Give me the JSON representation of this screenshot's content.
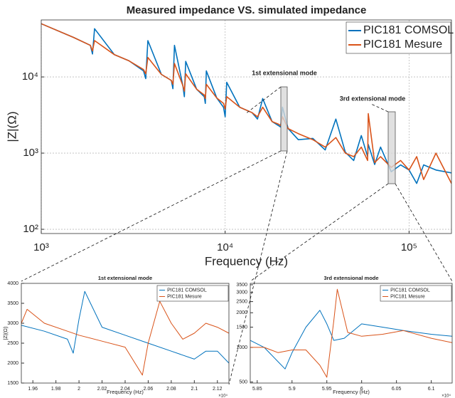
{
  "chart_data": [
    {
      "type": "line",
      "title": "Measured impedance VS. simulated impedance",
      "xlabel": "Frequency (Hz)",
      "ylabel": "|Z|(Ω)",
      "log_x": true,
      "log_y": true,
      "grid": true,
      "legend": "upper right",
      "xlim": [
        1000,
        170000
      ],
      "ylim": [
        88,
        56000
      ],
      "xticks": [
        {
          "value": 1000,
          "label": "10³"
        },
        {
          "value": 10000,
          "label": "10⁴"
        },
        {
          "value": 100000,
          "label": "10⁵"
        }
      ],
      "yticks": [
        {
          "value": 100,
          "label": "10²"
        },
        {
          "value": 1000,
          "label": "10³"
        },
        {
          "value": 10000,
          "label": "10⁴"
        }
      ],
      "annotations": [
        "1st extensional mode",
        "3rd extensional mode"
      ],
      "x": [
        1000,
        1500,
        1850,
        1900,
        1950,
        2500,
        3000,
        3600,
        3700,
        3800,
        4500,
        5100,
        5200,
        5300,
        5900,
        6000,
        6100,
        7000,
        7700,
        7800,
        7900,
        9000,
        9800,
        10000,
        10200,
        12000,
        14000,
        15000,
        16000,
        18000,
        19500,
        20000,
        20500,
        22000,
        25000,
        30000,
        35000,
        40000,
        45000,
        50000,
        55000,
        59500,
        60000,
        65000,
        70000,
        80000,
        90000,
        100000,
        110000,
        120000,
        140000,
        170000
      ],
      "series": [
        {
          "name": "PIC181 COMSOL",
          "color": "#0072BD",
          "values": [
            50000,
            33000,
            26000,
            20000,
            43000,
            19600,
            16300,
            12000,
            9500,
            30000,
            10800,
            9000,
            7000,
            26000,
            7500,
            5500,
            16000,
            6900,
            5500,
            4500,
            12000,
            5300,
            4000,
            3000,
            8500,
            4000,
            3400,
            2800,
            5200,
            2600,
            2300,
            2200,
            4000,
            2100,
            1500,
            1560,
            1100,
            2800,
            1030,
            800,
            1700,
            900,
            1300,
            710,
            1200,
            570,
            700,
            600,
            400,
            700,
            600,
            550
          ]
        },
        {
          "name": "PIC181 Mesure",
          "color": "#D95319",
          "values": [
            50000,
            33000,
            26000,
            22000,
            30000,
            19600,
            16300,
            12500,
            11000,
            18000,
            10800,
            9000,
            8000,
            15000,
            7600,
            6500,
            11000,
            6900,
            5800,
            5200,
            8000,
            5300,
            4500,
            3800,
            5500,
            4000,
            3400,
            3000,
            4000,
            2600,
            2400,
            2300,
            3000,
            2100,
            1800,
            1500,
            1200,
            1600,
            1000,
            900,
            1200,
            800,
            3300,
            750,
            900,
            650,
            800,
            600,
            900,
            450,
            1000,
            400
          ]
        }
      ]
    },
    {
      "type": "line",
      "title": "1st extensional mode",
      "xlabel": "Frequency (Hz)",
      "ylabel": "|Z|(Ω)",
      "x_multiplier": "×10⁴",
      "log_x": false,
      "log_y": false,
      "grid": false,
      "legend": "upper right",
      "xlim": [
        19500,
        21300
      ],
      "ylim": [
        1500,
        4000
      ],
      "xticks": [
        {
          "value": 19600,
          "label": "1.96"
        },
        {
          "value": 19800,
          "label": "1.98"
        },
        {
          "value": 20000,
          "label": "2"
        },
        {
          "value": 20200,
          "label": "2.02"
        },
        {
          "value": 20400,
          "label": "2.04"
        },
        {
          "value": 20600,
          "label": "2.06"
        },
        {
          "value": 20800,
          "label": "2.08"
        },
        {
          "value": 21000,
          "label": "2.1"
        },
        {
          "value": 21200,
          "label": "2.12"
        }
      ],
      "yticks": [
        1500,
        2000,
        2500,
        3000,
        3500,
        4000
      ],
      "series": [
        {
          "name": "PIC181 COMSOL",
          "color": "#0072BD",
          "x": [
            19500,
            19700,
            19900,
            19950,
            20000,
            20050,
            20100,
            20200,
            20400,
            20600,
            20800,
            21000,
            21100,
            21200,
            21300
          ],
          "values": [
            2950,
            2800,
            2600,
            2250,
            3100,
            3800,
            3500,
            2900,
            2700,
            2500,
            2300,
            2100,
            2300,
            2300,
            2000
          ]
        },
        {
          "name": "PIC181 Mesure",
          "color": "#D95319",
          "x": [
            19500,
            19550,
            19700,
            19900,
            20000,
            20200,
            20400,
            20550,
            20600,
            20700,
            20800,
            20900,
            21000,
            21100,
            21200,
            21300
          ],
          "values": [
            3000,
            3350,
            3000,
            2800,
            2700,
            2550,
            2400,
            1700,
            2500,
            3550,
            3000,
            2600,
            2750,
            3000,
            2900,
            2750
          ]
        }
      ]
    },
    {
      "type": "line",
      "title": "3rd extensional mode",
      "xlabel": "Frequency (Hz)",
      "x_multiplier": "×10⁴",
      "log_x": false,
      "log_y": true,
      "grid": false,
      "legend": "upper right",
      "xlim": [
        58400,
        61300
      ],
      "ylim": [
        490,
        3600
      ],
      "xticks": [
        {
          "value": 58500,
          "label": "5.85"
        },
        {
          "value": 59000,
          "label": "5.9"
        },
        {
          "value": 59500,
          "label": "5.95"
        },
        {
          "value": 60000,
          "label": "6"
        },
        {
          "value": 60500,
          "label": "6.05"
        },
        {
          "value": 61000,
          "label": "6.1"
        }
      ],
      "yticks": [
        500,
        1000,
        1500,
        2000,
        2500,
        3000,
        3500
      ],
      "series": [
        {
          "name": "PIC181 COMSOL",
          "color": "#0072BD",
          "x": [
            58400,
            58600,
            58800,
            58900,
            59000,
            59200,
            59400,
            59500,
            59600,
            59750,
            60000,
            60300,
            60600,
            61000,
            61300
          ],
          "values": [
            1150,
            1000,
            750,
            650,
            900,
            1500,
            2100,
            1600,
            1150,
            1200,
            1600,
            1500,
            1400,
            1300,
            1250
          ]
        },
        {
          "name": "PIC181 Mesure",
          "color": "#D95319",
          "x": [
            58400,
            58600,
            58800,
            59000,
            59200,
            59400,
            59500,
            59600,
            59650,
            59800,
            60000,
            60300,
            60600,
            61000,
            61300
          ],
          "values": [
            1000,
            1000,
            900,
            950,
            950,
            700,
            550,
            1700,
            3200,
            1350,
            1250,
            1300,
            1400,
            1200,
            1100
          ]
        }
      ]
    }
  ]
}
